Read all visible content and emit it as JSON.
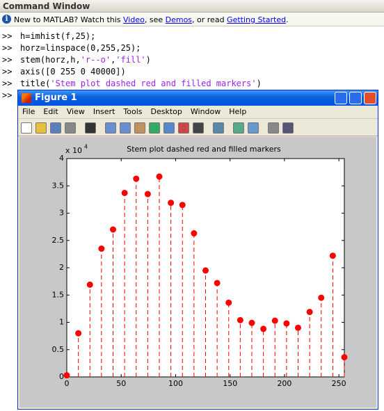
{
  "window": {
    "title": "Command Window"
  },
  "info_bar": {
    "segments": [
      {
        "text": "New to MATLAB? Watch this "
      },
      {
        "text": "Video",
        "link": true
      },
      {
        "text": ", see "
      },
      {
        "text": "Demos",
        "link": true
      },
      {
        "text": ", or read "
      },
      {
        "text": "Getting Started",
        "link": true
      },
      {
        "text": "."
      }
    ]
  },
  "prompt": ">>",
  "commands": [
    [
      {
        "text": "h=imhist(f,25);",
        "color": "#000000"
      }
    ],
    [
      {
        "text": "horz=linspace(0,255,25);",
        "color": "#000000"
      }
    ],
    [
      {
        "text": "stem(horz,h,",
        "color": "#000000"
      },
      {
        "text": "'r--o'",
        "color": "#a020f0"
      },
      {
        "text": ",",
        "color": "#000000"
      },
      {
        "text": "'fill'",
        "color": "#a020f0"
      },
      {
        "text": ")",
        "color": "#000000"
      }
    ],
    [
      {
        "text": "axis([0 255 0 40000])",
        "color": "#000000"
      }
    ],
    [
      {
        "text": "title(",
        "color": "#000000"
      },
      {
        "text": "'Stem plot dashed red and filled markers'",
        "color": "#a020f0"
      },
      {
        "text": ")",
        "color": "#000000"
      }
    ]
  ],
  "figure": {
    "title": "Figure 1",
    "menu": [
      "File",
      "Edit",
      "View",
      "Insert",
      "Tools",
      "Desktop",
      "Window",
      "Help"
    ]
  },
  "chart_data": {
    "type": "stem",
    "title": "Stem plot dashed red and filled markers",
    "y_multiplier": {
      "base": "x 10",
      "exponent": "4"
    },
    "x": [
      0,
      10.625,
      21.25,
      31.875,
      42.5,
      53.125,
      63.75,
      74.375,
      85,
      95.625,
      106.25,
      116.875,
      127.5,
      138.125,
      148.75,
      159.375,
      170,
      180.625,
      191.25,
      201.875,
      212.5,
      223.125,
      233.75,
      244.375,
      255
    ],
    "series": [
      {
        "name": "h",
        "color": "#ff0000",
        "values": [
          300,
          8000,
          16900,
          23500,
          27000,
          33700,
          36300,
          33500,
          36700,
          31900,
          31500,
          26300,
          19500,
          17200,
          13600,
          10400,
          9900,
          8800,
          10300,
          9800,
          9000,
          11900,
          14500,
          22200,
          3600
        ]
      }
    ],
    "xlim": [
      0,
      255
    ],
    "xticks": [
      0,
      50,
      100,
      150,
      200,
      250
    ],
    "ylim": [
      0,
      40000
    ],
    "yticks": [
      {
        "value": 0,
        "label": "0"
      },
      {
        "value": 5000,
        "label": "0.5"
      },
      {
        "value": 10000,
        "label": "1"
      },
      {
        "value": 15000,
        "label": "1.5"
      },
      {
        "value": 20000,
        "label": "2"
      },
      {
        "value": 25000,
        "label": "2.5"
      },
      {
        "value": 30000,
        "label": "3"
      },
      {
        "value": 35000,
        "label": "3.5"
      },
      {
        "value": 40000,
        "label": "4"
      }
    ],
    "grid": false
  }
}
